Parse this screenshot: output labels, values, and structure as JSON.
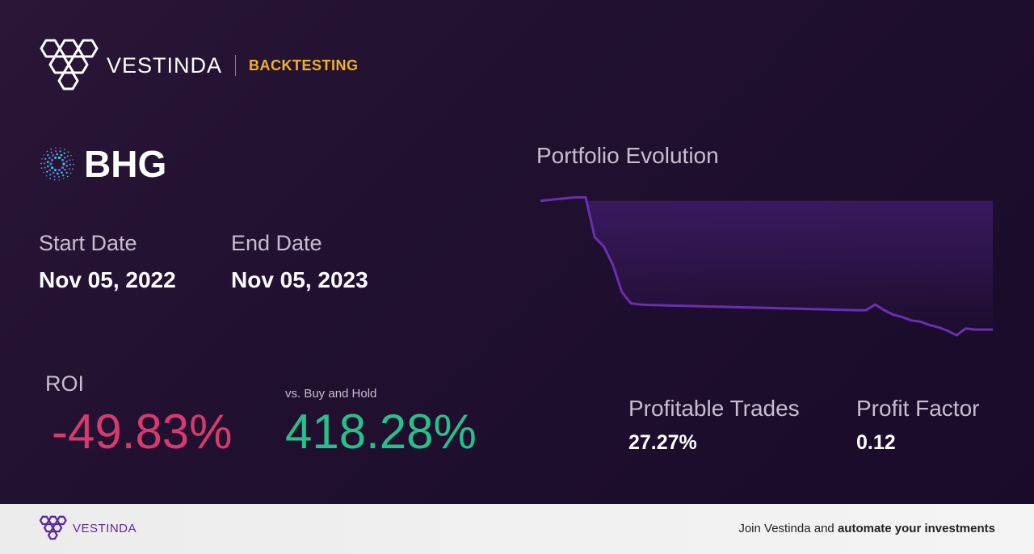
{
  "header": {
    "brand": "VESTINDA",
    "section": "BACKTESTING",
    "colors": {
      "brand": "#ffffff",
      "section": "#f0b323"
    }
  },
  "asset": {
    "icon": "starburst-icon",
    "ticker": "BHG"
  },
  "dates": {
    "start_label": "Start Date",
    "start_value": "Nov 05, 2022",
    "end_label": "End Date",
    "end_value": "Nov 05, 2023"
  },
  "roi": {
    "label": "ROI",
    "value": "-49.83%",
    "vs_label": "vs. Buy and Hold",
    "vs_value": "418.28%",
    "colors": {
      "negative": "#d63a6e",
      "positive": "#27c08a"
    }
  },
  "chart": {
    "title": "Portfolio Evolution",
    "line_color": "#6a2fb0"
  },
  "chart_data": {
    "type": "area",
    "title": "Portfolio Evolution",
    "xlabel": "",
    "ylabel": "",
    "grid": false,
    "legend": "none",
    "x": [
      0,
      2,
      4,
      6,
      8,
      10,
      12,
      14,
      16,
      18,
      20,
      22,
      24,
      26,
      28,
      30,
      32,
      34,
      36,
      38,
      40,
      42,
      44,
      46,
      48,
      50,
      52,
      54,
      56,
      58,
      60,
      62,
      64,
      66,
      68,
      70,
      72,
      74,
      76,
      78,
      80,
      82,
      84,
      86,
      88,
      90,
      92,
      94,
      96,
      98,
      100
    ],
    "values": [
      100,
      100.4,
      100.8,
      101.2,
      101.5,
      101.5,
      84,
      80,
      72,
      60,
      55,
      54.5,
      54.3,
      54.2,
      54.1,
      54,
      53.9,
      53.8,
      53.7,
      53.6,
      53.5,
      53.4,
      53.3,
      53.2,
      53.1,
      53,
      52.9,
      52.8,
      52.7,
      52.6,
      52.5,
      52.4,
      52.3,
      52.2,
      52.1,
      52,
      52,
      54.5,
      52,
      50,
      49,
      47.5,
      47,
      45.5,
      44.5,
      43,
      41,
      44,
      43.5,
      43.5,
      43.5
    ],
    "ylim": [
      40,
      102
    ]
  },
  "stats": {
    "profitable_label": "Profitable Trades",
    "profitable_value": "27.27%",
    "factor_label": "Profit Factor",
    "factor_value": "0.12"
  },
  "footer": {
    "brand": "VESTINDA",
    "cta_prefix": "Join Vestinda and ",
    "cta_bold": "automate your investments",
    "colors": {
      "brand": "#5b2a9a"
    }
  }
}
